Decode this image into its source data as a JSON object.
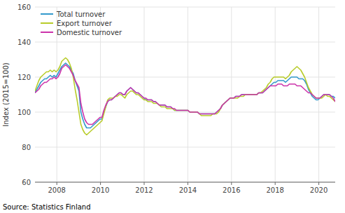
{
  "chart_data": {
    "type": "line",
    "ylabel": "Index (2015=100)",
    "annotations": [
      "Source: Statistics Finland"
    ],
    "xlim": [
      2007.0,
      2020.75
    ],
    "xticks": [
      2008,
      2010,
      2012,
      2014,
      2016,
      2018,
      2020
    ],
    "ylim": [
      60,
      160
    ],
    "yticks": [
      60,
      80,
      100,
      120,
      140,
      160
    ],
    "grid": true,
    "legend": "upper left",
    "x": [
      2007.0,
      2007.0876,
      2007.1752,
      2007.2627,
      2007.3503,
      2007.4379,
      2007.5255,
      2007.6131,
      2007.7006,
      2007.7882,
      2007.8758,
      2007.9634,
      2008.051,
      2008.1385,
      2008.2261,
      2008.3137,
      2008.4013,
      2008.4889,
      2008.5764,
      2008.664,
      2008.7516,
      2008.8392,
      2008.9268,
      2009.0143,
      2009.1019,
      2009.1895,
      2009.2771,
      2009.3646,
      2009.4522,
      2009.5398,
      2009.6274,
      2009.715,
      2009.8025,
      2009.8901,
      2009.9777,
      2010.0653,
      2010.1529,
      2010.2404,
      2010.328,
      2010.4156,
      2010.5032,
      2010.5908,
      2010.6783,
      2010.7659,
      2010.8535,
      2010.9411,
      2011.0287,
      2011.1162,
      2011.2038,
      2011.2914,
      2011.379,
      2011.4666,
      2011.5541,
      2011.6417,
      2011.7293,
      2011.8169,
      2011.9045,
      2011.992,
      2012.0796,
      2012.1672,
      2012.2548,
      2012.3424,
      2012.4299,
      2012.5175,
      2012.6051,
      2012.6927,
      2012.7803,
      2012.8678,
      2012.9554,
      2013.043,
      2013.1306,
      2013.2182,
      2013.3057,
      2013.3933,
      2013.4809,
      2013.5685,
      2013.6561,
      2013.7436,
      2013.8312,
      2013.9188,
      2014.0064,
      2014.0939,
      2014.1815,
      2014.2691,
      2014.3567,
      2014.4443,
      2014.5318,
      2014.6194,
      2014.707,
      2014.7946,
      2014.8822,
      2014.9697,
      2015.0573,
      2015.1449,
      2015.2325,
      2015.3201,
      2015.4076,
      2015.4952,
      2015.5828,
      2015.6704,
      2015.758,
      2015.8455,
      2015.9331,
      2016.0207,
      2016.1083,
      2016.1959,
      2016.2834,
      2016.371,
      2016.4586,
      2016.5462,
      2016.6338,
      2016.7213,
      2016.8089,
      2016.8965,
      2016.9841,
      2017.0717,
      2017.1592,
      2017.2468,
      2017.3344,
      2017.422,
      2017.5096,
      2017.5971,
      2017.6847,
      2017.7723,
      2017.8599,
      2017.9475,
      2018.035,
      2018.1226,
      2018.2102,
      2018.2978,
      2018.3854,
      2018.4729,
      2018.5605,
      2018.6481,
      2018.7357,
      2018.8232,
      2018.9108,
      2018.9984,
      2019.086,
      2019.1736,
      2019.2611,
      2019.3487,
      2019.4363,
      2019.5239,
      2019.6115,
      2019.699,
      2019.7866,
      2019.8742,
      2019.9618,
      2020.0494,
      2020.1369,
      2020.2245,
      2020.3121,
      2020.3997,
      2020.4873,
      2020.5748,
      2020.6624,
      2020.75
    ],
    "series": [
      {
        "name": "Total turnover",
        "color": "#3399cc",
        "values": [
          111,
          113,
          115,
          117,
          118,
          119,
          119,
          120,
          121,
          120,
          121,
          120,
          122,
          124,
          126,
          127,
          128,
          127,
          126,
          124,
          122,
          118,
          115,
          112,
          100,
          96,
          93,
          91,
          91,
          91,
          92,
          93,
          94,
          95,
          96,
          96,
          100,
          103,
          106,
          107,
          107,
          108,
          109,
          110,
          111,
          111,
          110,
          110,
          112,
          113,
          114,
          113,
          112,
          111,
          111,
          110,
          109,
          108,
          107,
          107,
          107,
          107,
          106,
          106,
          105,
          104,
          104,
          104,
          104,
          103,
          103,
          103,
          102,
          101,
          101,
          101,
          101,
          101,
          101,
          101,
          101,
          100,
          100,
          100,
          100,
          100,
          99,
          99,
          99,
          99,
          99,
          99,
          99,
          99,
          99,
          100,
          101,
          102,
          104,
          105,
          106,
          107,
          108,
          108,
          108,
          109,
          109,
          109,
          110,
          110,
          110,
          110,
          110,
          110,
          110,
          110,
          110,
          111,
          111,
          111,
          112,
          113,
          114,
          115,
          116,
          117,
          117,
          118,
          118,
          118,
          118,
          117,
          118,
          119,
          120,
          120,
          120,
          120,
          119,
          119,
          119,
          118,
          116,
          113,
          111,
          109,
          108,
          107,
          107,
          108,
          109,
          110,
          110,
          110,
          110,
          109,
          109,
          108
        ]
      },
      {
        "name": "Export turnover",
        "color": "#b8cc2a",
        "values": [
          112,
          115,
          118,
          120,
          121,
          122,
          123,
          123,
          124,
          123,
          124,
          123,
          124,
          126,
          129,
          130,
          131,
          130,
          128,
          125,
          120,
          113,
          107,
          100,
          93,
          90,
          88,
          87,
          88,
          89,
          90,
          91,
          92,
          93,
          94,
          95,
          99,
          103,
          107,
          108,
          108,
          108,
          109,
          109,
          110,
          110,
          109,
          108,
          110,
          111,
          112,
          112,
          111,
          110,
          110,
          109,
          108,
          107,
          107,
          106,
          106,
          106,
          105,
          105,
          105,
          104,
          103,
          103,
          103,
          102,
          102,
          102,
          102,
          101,
          101,
          101,
          101,
          101,
          101,
          101,
          101,
          100,
          100,
          100,
          100,
          100,
          99,
          98,
          98,
          98,
          98,
          98,
          98,
          99,
          99,
          99,
          100,
          102,
          104,
          105,
          106,
          107,
          108,
          108,
          108,
          108,
          108,
          109,
          109,
          109,
          110,
          110,
          110,
          110,
          110,
          110,
          110,
          111,
          111,
          112,
          113,
          114,
          116,
          117,
          119,
          120,
          120,
          120,
          120,
          120,
          120,
          119,
          120,
          121,
          123,
          124,
          125,
          126,
          125,
          124,
          122,
          120,
          117,
          114,
          112,
          110,
          109,
          108,
          108,
          108,
          108,
          109,
          110,
          109,
          109,
          108,
          107,
          106
        ]
      },
      {
        "name": "Domestic turnover",
        "color": "#cc33aa",
        "values": [
          111,
          112,
          113,
          115,
          116,
          117,
          117,
          118,
          119,
          119,
          120,
          119,
          120,
          122,
          125,
          126,
          127,
          126,
          125,
          123,
          121,
          118,
          116,
          114,
          105,
          100,
          96,
          94,
          93,
          93,
          93,
          94,
          95,
          96,
          97,
          97,
          101,
          104,
          106,
          107,
          107,
          108,
          109,
          110,
          111,
          111,
          110,
          110,
          112,
          113,
          114,
          113,
          112,
          111,
          111,
          110,
          109,
          108,
          108,
          107,
          107,
          107,
          106,
          106,
          105,
          104,
          104,
          104,
          104,
          103,
          103,
          103,
          102,
          102,
          101,
          101,
          101,
          101,
          101,
          101,
          101,
          100,
          100,
          100,
          100,
          100,
          99,
          99,
          99,
          99,
          99,
          99,
          99,
          99,
          99,
          100,
          101,
          102,
          104,
          105,
          106,
          107,
          108,
          108,
          108,
          109,
          109,
          109,
          110,
          110,
          110,
          110,
          110,
          110,
          110,
          110,
          110,
          111,
          111,
          111,
          112,
          113,
          114,
          115,
          115,
          115,
          115,
          116,
          116,
          116,
          115,
          115,
          115,
          116,
          116,
          116,
          116,
          115,
          115,
          115,
          114,
          113,
          112,
          111,
          111,
          110,
          109,
          108,
          108,
          108,
          109,
          110,
          110,
          110,
          110,
          109,
          108,
          106
        ]
      }
    ]
  }
}
